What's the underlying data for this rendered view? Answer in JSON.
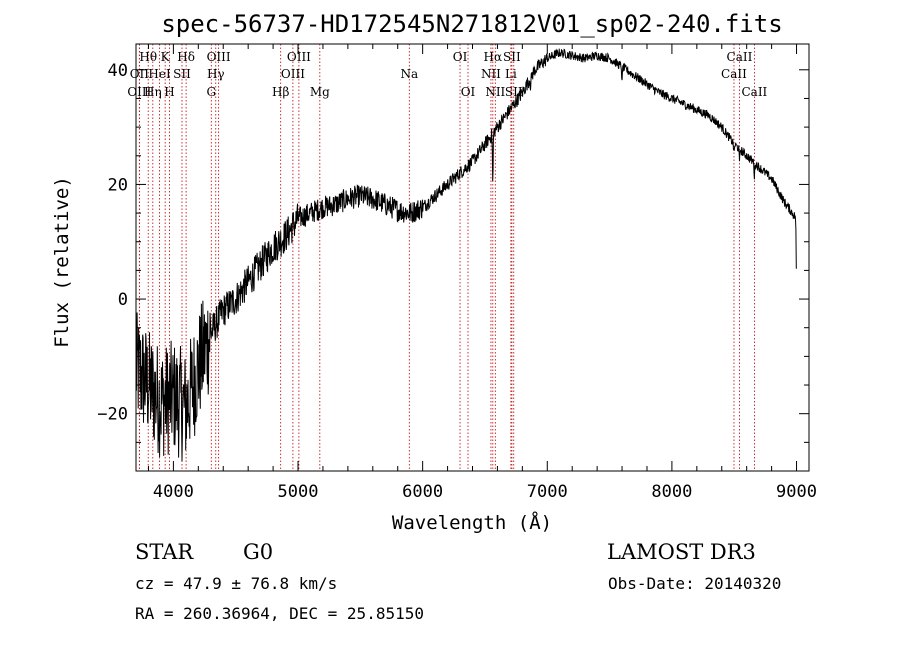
{
  "chart_data": {
    "type": "line",
    "title": "spec-56737-HD172545N271812V01_sp02-240.fits",
    "xlabel": "Wavelength (Å)",
    "ylabel": "Flux (relative)",
    "xlim": [
      3700,
      9100
    ],
    "ylim": [
      -30,
      44.5
    ],
    "xticks": [
      4000,
      5000,
      6000,
      7000,
      8000,
      9000
    ],
    "yticks": [
      -20,
      0,
      20,
      40
    ],
    "grid": false,
    "series": [
      {
        "name": "flux",
        "continuum": {
          "x": [
            3700,
            3800,
            3900,
            4000,
            4100,
            4200,
            4300,
            4400,
            4500,
            4600,
            4700,
            4800,
            4900,
            5000,
            5100,
            5200,
            5300,
            5400,
            5500,
            5600,
            5700,
            5800,
            5900,
            6000,
            6100,
            6200,
            6300,
            6400,
            6500,
            6600,
            6700,
            6800,
            6900,
            7000,
            7100,
            7200,
            7300,
            7400,
            7500,
            7600,
            7700,
            7800,
            7900,
            8000,
            8100,
            8200,
            8300,
            8400,
            8500,
            8600,
            8700,
            8800,
            8900,
            9000
          ],
          "y": [
            -12,
            -15,
            -18,
            -17,
            -19,
            -12,
            -6,
            -2,
            0,
            3,
            6,
            9,
            11,
            14,
            15,
            16,
            16.5,
            17.5,
            18,
            17.5,
            16.5,
            15.5,
            15,
            16,
            18,
            20,
            22,
            24,
            27,
            30,
            33,
            36,
            40,
            42,
            43,
            42.5,
            42,
            42.5,
            42,
            40.5,
            39,
            37.5,
            36,
            35,
            34,
            33,
            32,
            30,
            27,
            25,
            23,
            21,
            17,
            14
          ]
        },
        "noise": [
          {
            "from": 3700,
            "to": 4300,
            "amplitude": 10
          },
          {
            "from": 4300,
            "to": 5000,
            "amplitude": 3
          },
          {
            "from": 5000,
            "to": 6000,
            "amplitude": 2
          },
          {
            "from": 6000,
            "to": 7000,
            "amplitude": 1.2
          },
          {
            "from": 7000,
            "to": 9000,
            "amplitude": 0.8
          }
        ],
        "features": [
          {
            "x": 6563,
            "depth": 10
          },
          {
            "x": 6867,
            "depth": 2
          },
          {
            "x": 7600,
            "depth": 3
          },
          {
            "x": 8498,
            "depth": 2
          },
          {
            "x": 8542,
            "depth": 2.5
          },
          {
            "x": 8662,
            "depth": 2.5
          },
          {
            "x": 9000,
            "depth": 14
          }
        ]
      }
    ],
    "line_markers": [
      {
        "label": "Hθ",
        "x": 3798,
        "row": 0
      },
      {
        "label": "OII",
        "x": 3727,
        "row": 1
      },
      {
        "label": "OIII",
        "x": 3727,
        "row": 2
      },
      {
        "label": "K",
        "x": 3934,
        "row": 0
      },
      {
        "label": "HeI",
        "x": 3889,
        "row": 1
      },
      {
        "label": "Hη",
        "x": 3835,
        "row": 2
      },
      {
        "label": "SII",
        "x": 4069,
        "row": 1
      },
      {
        "label": "H",
        "x": 3969,
        "row": 2
      },
      {
        "label": "Hδ",
        "x": 4102,
        "row": 0
      },
      {
        "label": "OIII",
        "x": 4363,
        "row": 0
      },
      {
        "label": "Hγ",
        "x": 4340,
        "row": 1
      },
      {
        "label": "G",
        "x": 4304,
        "row": 2
      },
      {
        "label": "Hβ",
        "x": 4861,
        "row": 2
      },
      {
        "label": "OIII",
        "x": 5007,
        "row": 0
      },
      {
        "label": "OIII",
        "x": 4959,
        "row": 1
      },
      {
        "label": "Mg",
        "x": 5175,
        "row": 2
      },
      {
        "label": "Na",
        "x": 5893,
        "row": 1
      },
      {
        "label": "OI",
        "x": 6300,
        "row": 0
      },
      {
        "label": "OI",
        "x": 6364,
        "row": 2
      },
      {
        "label": "Hα",
        "x": 6563,
        "row": 0
      },
      {
        "label": "NII",
        "x": 6548,
        "row": 1
      },
      {
        "label": "NII",
        "x": 6583,
        "row": 2
      },
      {
        "label": "SII",
        "x": 6716,
        "row": 0
      },
      {
        "label": "Li",
        "x": 6708,
        "row": 1
      },
      {
        "label": "SII",
        "x": 6731,
        "row": 2
      },
      {
        "label": "CaII",
        "x": 8542,
        "row": 0
      },
      {
        "label": "CaII",
        "x": 8498,
        "row": 1
      },
      {
        "label": "CaII",
        "x": 8662,
        "row": 2
      }
    ]
  },
  "info": {
    "object_class": "STAR",
    "subclass": "G0",
    "survey": "LAMOST DR3",
    "redshift": "cz = 47.9 ± 76.8 km/s",
    "obs_date": "Obs-Date: 20140320",
    "coords": "RA = 260.36964, DEC =  25.85150"
  },
  "colors": {
    "marker": "#c00000",
    "ink": "#000000"
  }
}
